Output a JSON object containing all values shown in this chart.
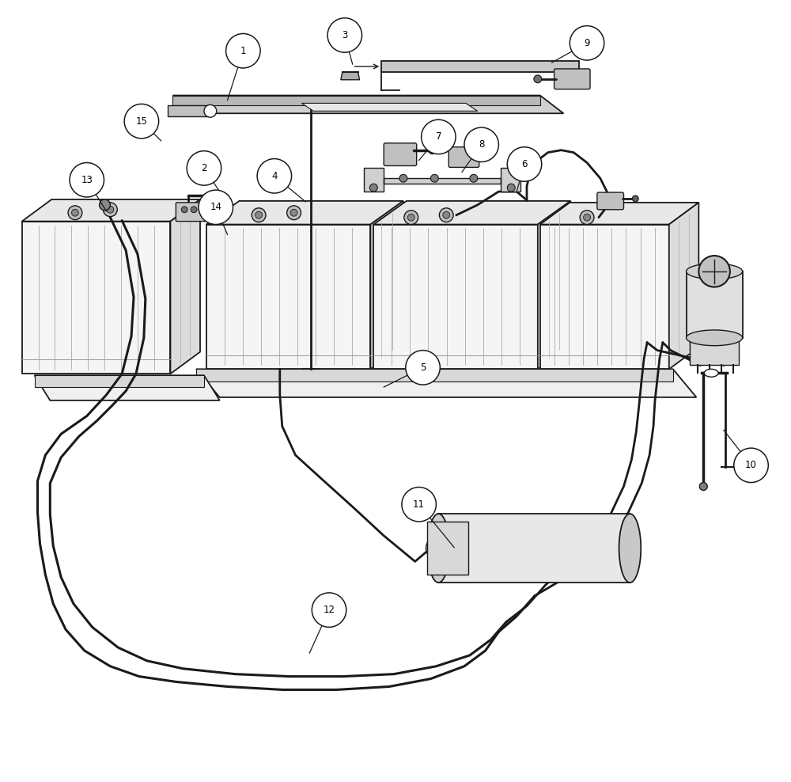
{
  "bg_color": "#ffffff",
  "lc": "#1a1a1a",
  "figsize": [
    10.0,
    9.88
  ],
  "dpi": 100,
  "xlim": [
    0,
    10
  ],
  "ylim": [
    0,
    10
  ],
  "label_data": [
    [
      1,
      3.05,
      9.35,
      2.85,
      8.72
    ],
    [
      2,
      2.55,
      7.85,
      2.75,
      7.55
    ],
    [
      3,
      4.35,
      9.55,
      4.45,
      9.18
    ],
    [
      4,
      3.45,
      7.75,
      3.85,
      7.42
    ],
    [
      5,
      5.35,
      5.3,
      4.85,
      5.05
    ],
    [
      6,
      6.65,
      7.9,
      6.55,
      7.55
    ],
    [
      7,
      5.55,
      8.25,
      5.3,
      7.95
    ],
    [
      8,
      6.1,
      8.15,
      5.85,
      7.8
    ],
    [
      9,
      7.45,
      9.45,
      7.0,
      9.2
    ],
    [
      10,
      9.55,
      4.05,
      9.2,
      4.5
    ],
    [
      11,
      5.3,
      3.55,
      5.75,
      3.0
    ],
    [
      12,
      4.15,
      2.2,
      3.9,
      1.65
    ],
    [
      13,
      1.05,
      7.7,
      1.3,
      7.3
    ],
    [
      14,
      2.7,
      7.35,
      2.85,
      7.0
    ],
    [
      15,
      1.75,
      8.45,
      2.0,
      8.2
    ]
  ]
}
